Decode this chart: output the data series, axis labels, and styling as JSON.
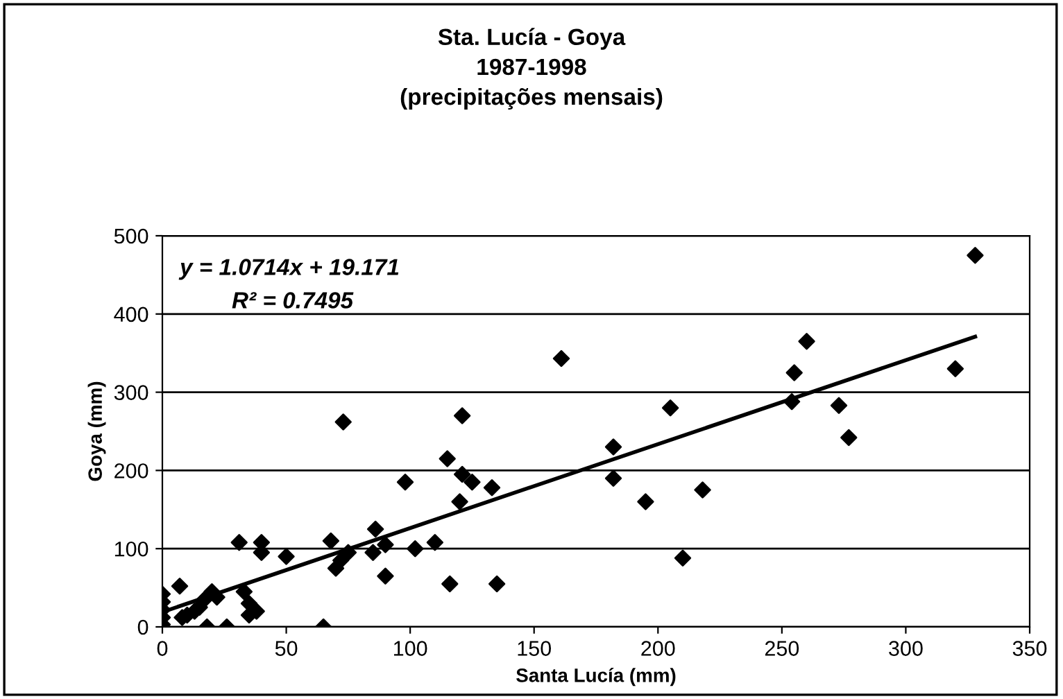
{
  "chart_data": {
    "type": "scatter",
    "title": "Sta. Lucía - Goya\n1987-1998\n(precipitações mensais)",
    "xlabel": "Santa Lucía (mm)",
    "ylabel": "Goya (mm)",
    "xlim": [
      0,
      350
    ],
    "xticks": [
      0,
      50,
      100,
      150,
      200,
      250,
      300,
      350
    ],
    "ylim": [
      0,
      500
    ],
    "yticks": [
      0,
      100,
      200,
      300,
      400,
      500
    ],
    "grid": "y",
    "legend": false,
    "annotations": [
      "y = 1.0714x + 19.171",
      "R² = 0.7495"
    ],
    "series": [
      {
        "marker": "diamond",
        "color": "#000000",
        "x": [
          0,
          0,
          0,
          0,
          0,
          7,
          8,
          10,
          13,
          15,
          17,
          18,
          20,
          22,
          26,
          31,
          33,
          35,
          35,
          38,
          40,
          40,
          50,
          65,
          68,
          70,
          72,
          73,
          75,
          85,
          86,
          90,
          90,
          98,
          102,
          110,
          115,
          116,
          120,
          121,
          121,
          125,
          133,
          135,
          161,
          182,
          182,
          195,
          205,
          210,
          218,
          254,
          255,
          260,
          273,
          277,
          320,
          328
        ],
        "values": [
          42,
          32,
          22,
          12,
          3,
          52,
          12,
          15,
          20,
          25,
          35,
          0,
          45,
          38,
          0,
          108,
          45,
          30,
          15,
          20,
          108,
          95,
          90,
          0,
          110,
          75,
          85,
          262,
          95,
          95,
          125,
          65,
          105,
          185,
          100,
          108,
          215,
          55,
          160,
          270,
          195,
          185,
          178,
          55,
          343,
          230,
          190,
          160,
          280,
          88,
          175,
          288,
          325,
          365,
          283,
          242,
          330,
          475
        ]
      },
      {
        "type": "line",
        "color": "#000000",
        "x": [
          0,
          328
        ],
        "values": [
          19,
          371
        ]
      }
    ]
  }
}
